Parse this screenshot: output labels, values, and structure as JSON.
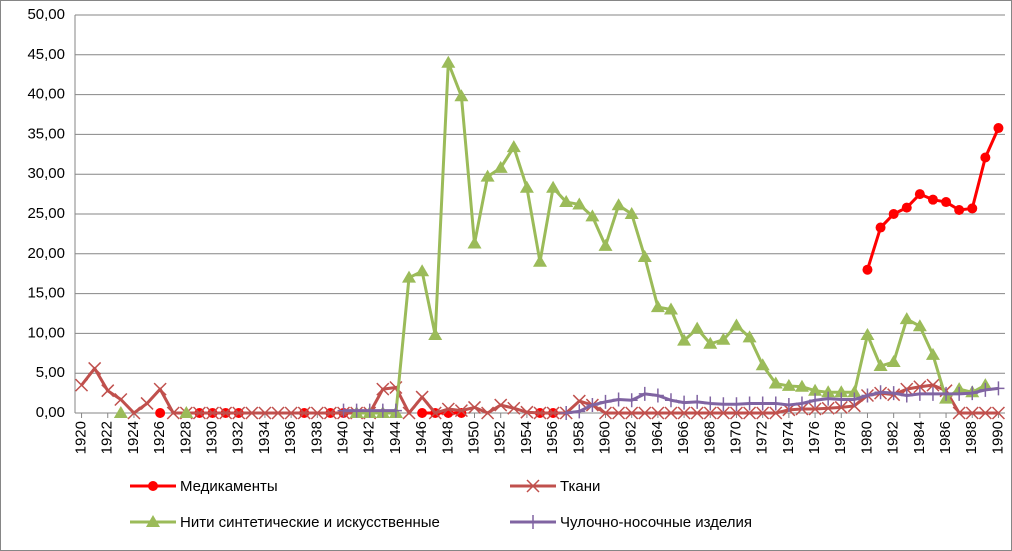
{
  "chart_data": {
    "type": "line",
    "x": [
      1920,
      1921,
      1922,
      1923,
      1924,
      1925,
      1926,
      1927,
      1928,
      1929,
      1930,
      1931,
      1932,
      1933,
      1934,
      1935,
      1936,
      1937,
      1938,
      1939,
      1940,
      1941,
      1942,
      1943,
      1944,
      1945,
      1946,
      1947,
      1948,
      1949,
      1950,
      1951,
      1952,
      1953,
      1954,
      1955,
      1956,
      1957,
      1958,
      1959,
      1960,
      1961,
      1962,
      1963,
      1964,
      1965,
      1966,
      1967,
      1968,
      1969,
      1970,
      1971,
      1972,
      1973,
      1974,
      1975,
      1976,
      1977,
      1978,
      1979,
      1980,
      1981,
      1982,
      1983,
      1984,
      1985,
      1986,
      1987,
      1988,
      1989,
      1990
    ],
    "xlim": [
      1919.5,
      1990.5
    ],
    "xticks": [
      1920,
      1922,
      1924,
      1926,
      1928,
      1930,
      1932,
      1934,
      1936,
      1938,
      1940,
      1942,
      1944,
      1946,
      1948,
      1950,
      1952,
      1954,
      1956,
      1958,
      1960,
      1962,
      1964,
      1966,
      1968,
      1970,
      1972,
      1974,
      1976,
      1978,
      1980,
      1982,
      1984,
      1986,
      1988,
      1990
    ],
    "ylim": [
      0,
      50
    ],
    "yticks": [
      {
        "value": 0,
        "label": "0,00"
      },
      {
        "value": 5,
        "label": "5,00"
      },
      {
        "value": 10,
        "label": "10,00"
      },
      {
        "value": 15,
        "label": "15,00"
      },
      {
        "value": 20,
        "label": "20,00"
      },
      {
        "value": 25,
        "label": "25,00"
      },
      {
        "value": 30,
        "label": "30,00"
      },
      {
        "value": 35,
        "label": "35,00"
      },
      {
        "value": 40,
        "label": "40,00"
      },
      {
        "value": 45,
        "label": "45,00"
      },
      {
        "value": 50,
        "label": "50,00"
      }
    ],
    "grid": true,
    "legend": "bottom",
    "series": [
      {
        "name": "Медикаменты",
        "color": "#ff0000",
        "marker": "circle",
        "values": [
          null,
          null,
          null,
          null,
          null,
          null,
          0,
          null,
          null,
          0,
          0,
          0,
          0,
          null,
          null,
          null,
          null,
          0,
          null,
          0,
          0,
          null,
          null,
          null,
          null,
          null,
          0,
          0,
          0,
          0,
          null,
          null,
          null,
          null,
          null,
          0,
          0,
          null,
          null,
          null,
          null,
          null,
          null,
          null,
          null,
          null,
          null,
          null,
          null,
          null,
          null,
          null,
          null,
          null,
          null,
          null,
          null,
          null,
          null,
          null,
          18.0,
          23.3,
          25.0,
          25.8,
          27.5,
          26.8,
          26.5,
          25.5,
          25.7,
          32.1,
          35.8
        ]
      },
      {
        "name": "Ткани",
        "color": "#c0504d",
        "marker": "x",
        "values": [
          3.5,
          5.6,
          2.8,
          1.7,
          0,
          1.2,
          3.0,
          0,
          0,
          0,
          0,
          0,
          0,
          0,
          0,
          0,
          0,
          0,
          0,
          0,
          0,
          0,
          0,
          3.0,
          3.2,
          0,
          2.0,
          0,
          0.5,
          0.3,
          0.7,
          0,
          1.0,
          0.6,
          0.1,
          0,
          0,
          0,
          1.5,
          1.0,
          0,
          0,
          0,
          0,
          0,
          0,
          0,
          0,
          0,
          0,
          0,
          0,
          0,
          0,
          0.4,
          0.5,
          0.5,
          0.6,
          0.7,
          0.9,
          2.2,
          2.5,
          2.3,
          3.0,
          3.3,
          3.5,
          2.8,
          0,
          0,
          0,
          0
        ]
      },
      {
        "name": "Нити синтетические и искусственные",
        "color": "#9bbb59",
        "marker": "triangle",
        "values": [
          null,
          null,
          null,
          0,
          null,
          null,
          null,
          null,
          0,
          null,
          null,
          null,
          null,
          null,
          null,
          null,
          null,
          null,
          null,
          null,
          null,
          0,
          0,
          0,
          0,
          17.0,
          17.8,
          9.8,
          44.0,
          39.8,
          21.3,
          29.7,
          30.8,
          33.4,
          28.3,
          19.0,
          28.3,
          26.5,
          26.2,
          24.7,
          21.0,
          26.1,
          25.0,
          19.6,
          13.3,
          13.0,
          9.1,
          10.6,
          8.7,
          9.2,
          11.0,
          9.5,
          6.0,
          3.7,
          3.4,
          3.3,
          2.8,
          2.6,
          2.6,
          2.6,
          9.8,
          5.9,
          6.4,
          11.8,
          10.9,
          7.3,
          1.8,
          3.0,
          2.6,
          3.5,
          null
        ]
      },
      {
        "name": "Чулочно-носочные изделия",
        "color": "#8064a2",
        "marker": "plus",
        "values": [
          null,
          null,
          null,
          null,
          null,
          null,
          null,
          null,
          null,
          null,
          null,
          null,
          null,
          null,
          null,
          null,
          null,
          null,
          null,
          null,
          0.3,
          0.3,
          0.3,
          0.3,
          0.3,
          null,
          null,
          null,
          null,
          null,
          null,
          null,
          null,
          null,
          null,
          null,
          null,
          0,
          0.2,
          1.0,
          1.4,
          1.7,
          1.6,
          2.4,
          2.2,
          1.6,
          1.3,
          1.4,
          1.2,
          1.1,
          1.1,
          1.2,
          1.2,
          1.2,
          1.0,
          1.2,
          1.6,
          1.8,
          1.7,
          1.7,
          2.2,
          2.6,
          2.5,
          2.2,
          2.4,
          2.4,
          2.4,
          2.4,
          2.5,
          2.9,
          3.1
        ]
      }
    ]
  }
}
